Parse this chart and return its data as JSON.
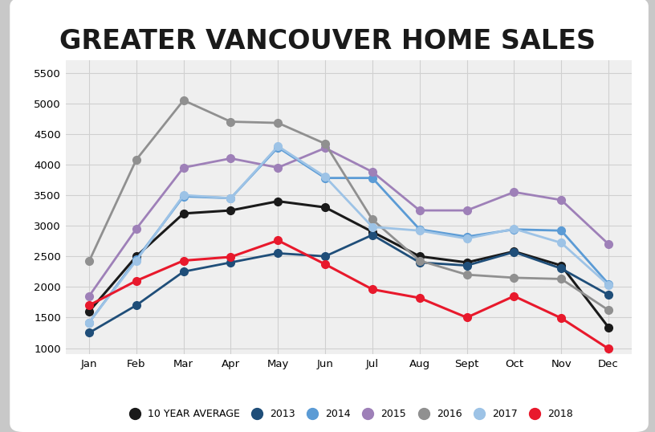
{
  "title": "GREATER VANCOUVER HOME SALES",
  "months": [
    "Jan",
    "Feb",
    "Mar",
    "Apr",
    "May",
    "Jun",
    "Jul",
    "Aug",
    "Sept",
    "Oct",
    "Nov",
    "Dec"
  ],
  "series": {
    "10 YEAR AVERAGE": {
      "color": "#1a1a1a",
      "linewidth": 2.2,
      "markersize": 7,
      "values": [
        1600,
        2500,
        3200,
        3250,
        3400,
        3300,
        2900,
        2500,
        2400,
        2580,
        2350,
        1340
      ]
    },
    "2013": {
      "color": "#1f4e79",
      "linewidth": 2.0,
      "markersize": 7,
      "values": [
        1250,
        1700,
        2250,
        2400,
        2550,
        2500,
        2850,
        2400,
        2350,
        2570,
        2300,
        1870
      ]
    },
    "2014": {
      "color": "#5b9bd5",
      "linewidth": 2.0,
      "markersize": 7,
      "values": [
        1420,
        2450,
        3480,
        3450,
        4280,
        3780,
        3780,
        2940,
        2820,
        2940,
        2920,
        2050
      ]
    },
    "2015": {
      "color": "#9e80b8",
      "linewidth": 2.0,
      "markersize": 7,
      "values": [
        1850,
        2950,
        3950,
        4100,
        3950,
        4270,
        3880,
        3250,
        3250,
        3550,
        3420,
        2700
      ]
    },
    "2016": {
      "color": "#909090",
      "linewidth": 2.0,
      "markersize": 7,
      "values": [
        2420,
        4080,
        5050,
        4700,
        4680,
        4340,
        3100,
        2430,
        2200,
        2150,
        2130,
        1620
      ]
    },
    "2017": {
      "color": "#9dc3e6",
      "linewidth": 2.0,
      "markersize": 7,
      "values": [
        1420,
        2430,
        3500,
        3450,
        4300,
        3800,
        2980,
        2920,
        2790,
        2950,
        2720,
        2030
      ]
    },
    "2018": {
      "color": "#e8192c",
      "linewidth": 2.2,
      "markersize": 7,
      "values": [
        1700,
        2100,
        2430,
        2490,
        2760,
        2370,
        1960,
        1820,
        1500,
        1850,
        1490,
        990
      ]
    }
  },
  "ylim": [
    900,
    5700
  ],
  "yticks": [
    1000,
    1500,
    2000,
    2500,
    3000,
    3500,
    4000,
    4500,
    5000,
    5500
  ],
  "bg_outer": "#c8c8c8",
  "bg_inner": "#ffffff",
  "bg_plot": "#efefef",
  "grid_color": "#d0d0d0",
  "title_fontsize": 24,
  "title_fontweight": "bold",
  "legend_fontsize": 9.0,
  "tick_fontsize": 9.5
}
